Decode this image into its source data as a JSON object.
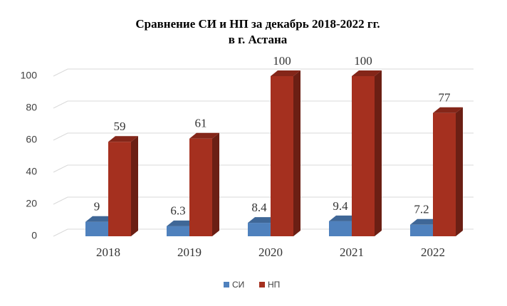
{
  "chart_data": {
    "type": "bar3d",
    "title": "Сравнение СИ и НП за декабрь 2018-2022 гг.",
    "subtitle": "в г. Астана",
    "categories": [
      "2018",
      "2019",
      "2020",
      "2021",
      "2022"
    ],
    "series": [
      {
        "name": "СИ",
        "color": "#4f81bd",
        "values": [
          9,
          6.3,
          8.4,
          9.4,
          7.2
        ]
      },
      {
        "name": "НП",
        "color": "#a5301f",
        "values": [
          59,
          61,
          100,
          100,
          77
        ]
      }
    ],
    "ylim": [
      0,
      100
    ],
    "yticks": [
      0,
      20,
      40,
      60,
      80,
      100
    ],
    "grid": true,
    "legend": "bottom"
  }
}
